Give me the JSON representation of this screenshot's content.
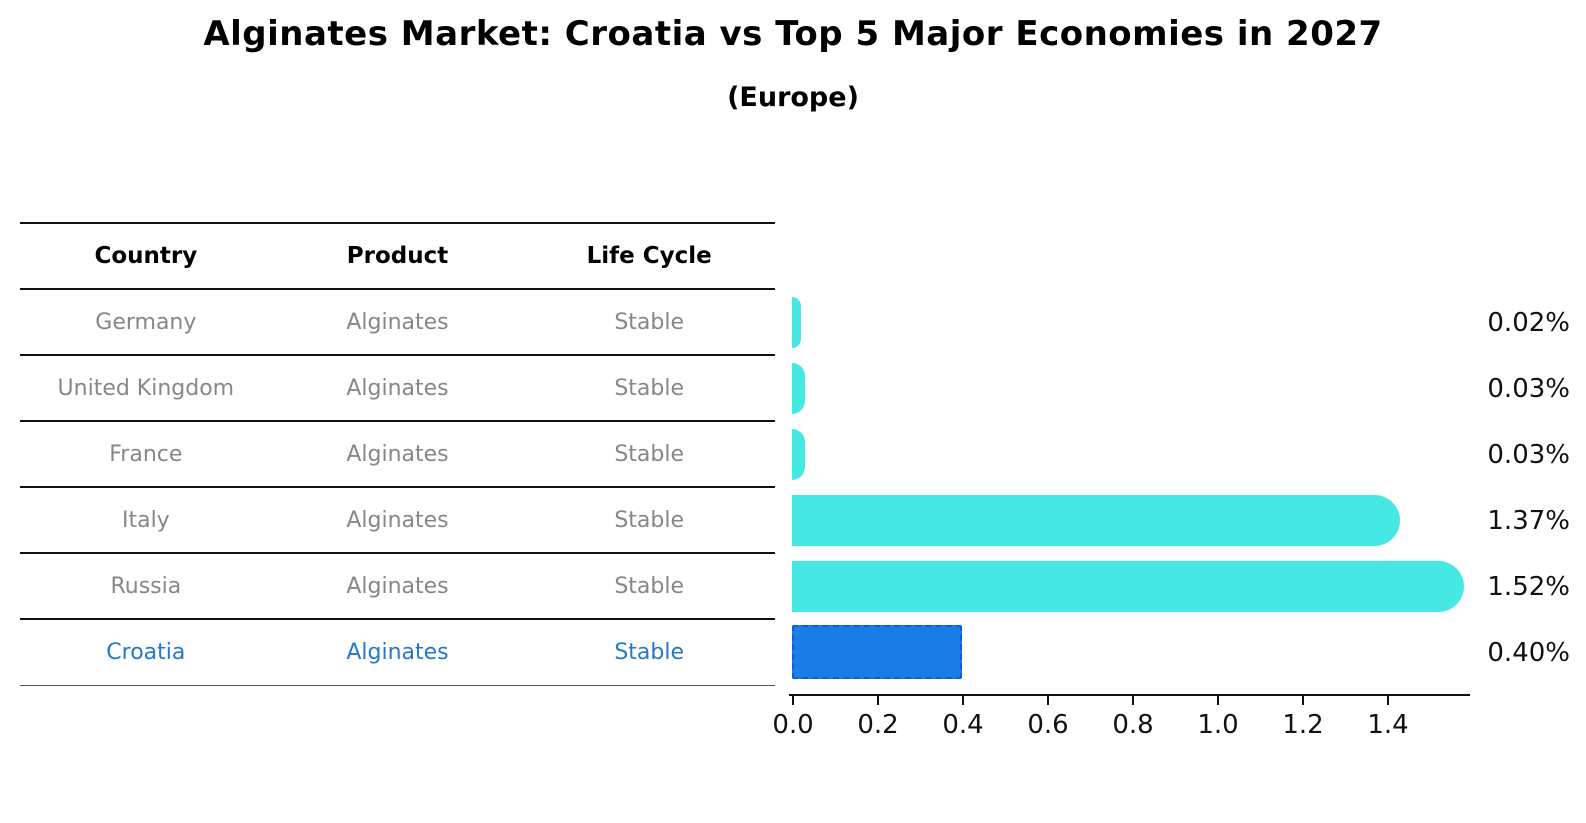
{
  "title": "Alginates Market: Croatia vs Top 5 Major Economies in 2027",
  "subtitle": "(Europe)",
  "table": {
    "headers": {
      "country": "Country",
      "product": "Product",
      "life_cycle": "Life Cycle"
    },
    "rows": [
      {
        "country": "Germany",
        "product": "Alginates",
        "life_cycle": "Stable",
        "highlight": false
      },
      {
        "country": "United Kingdom",
        "product": "Alginates",
        "life_cycle": "Stable",
        "highlight": false
      },
      {
        "country": "France",
        "product": "Alginates",
        "life_cycle": "Stable",
        "highlight": false
      },
      {
        "country": "Italy",
        "product": "Alginates",
        "life_cycle": "Stable",
        "highlight": false
      },
      {
        "country": "Russia",
        "product": "Alginates",
        "life_cycle": "Stable",
        "highlight": false
      },
      {
        "country": "Croatia",
        "product": "Alginates",
        "life_cycle": "Stable",
        "highlight": true
      }
    ]
  },
  "chart_data": {
    "type": "bar",
    "orientation": "horizontal",
    "title": "Alginates Market: Croatia vs Top 5 Major Economies in 2027",
    "subtitle": "(Europe)",
    "categories": [
      "Germany",
      "United Kingdom",
      "France",
      "Italy",
      "Russia",
      "Croatia"
    ],
    "values": [
      0.02,
      0.03,
      0.03,
      1.37,
      1.52,
      0.4
    ],
    "value_labels": [
      "0.02%",
      "0.03%",
      "0.03%",
      "1.37%",
      "1.52%",
      "0.40%"
    ],
    "highlight_category": "Croatia",
    "x_ticks": [
      "0.0",
      "0.2",
      "0.4",
      "0.6",
      "0.8",
      "1.0",
      "1.2",
      "1.4"
    ],
    "xlim": [
      0.0,
      1.6
    ],
    "grid": false,
    "legend": false,
    "colors": {
      "default_bar": "#46e8e4",
      "highlight_bar": "#1a7ce6",
      "highlight_border": "#0d5ec9",
      "highlight_text": "#2678c8",
      "row_text": "#878787",
      "header_text": "#000000",
      "axis": "#111111"
    }
  }
}
